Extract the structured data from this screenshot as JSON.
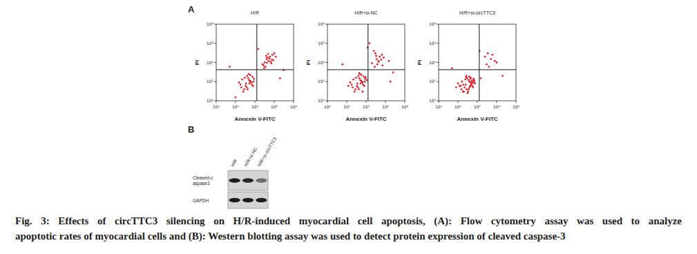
{
  "panel_labels": [
    "A",
    "B"
  ],
  "chart_data": [
    {
      "type": "scatter",
      "title": "H/R",
      "x_label": "Annexin V-FITC",
      "y_label": "PI",
      "log": true,
      "color": "#e8202a",
      "marker": "dot",
      "xlim": [
        1,
        10000
      ],
      "ylim": [
        1,
        10000
      ],
      "xticks": [
        {
          "value": 1,
          "label": "10⁰"
        },
        {
          "value": 10,
          "label": "10¹"
        },
        {
          "value": 100,
          "label": "10²"
        },
        {
          "value": 1000,
          "label": "10³"
        },
        {
          "value": 10000,
          "label": "10⁴"
        }
      ],
      "yticks": [
        {
          "value": 1,
          "label": "10⁰"
        },
        {
          "value": 10,
          "label": "10¹"
        },
        {
          "value": 100,
          "label": "10²"
        },
        {
          "value": 1000,
          "label": "10³"
        },
        {
          "value": 10000,
          "label": "10⁴"
        }
      ],
      "quadrant": {
        "x": 126,
        "y": 42
      },
      "x": [
        20,
        35,
        50,
        28,
        60,
        45,
        80,
        15,
        40,
        70,
        25,
        55,
        90,
        33,
        48,
        65,
        22,
        38,
        75,
        52,
        30,
        42,
        85,
        18,
        58,
        250,
        400,
        600,
        320,
        800,
        500,
        350,
        1000,
        450,
        700,
        280,
        550,
        380,
        900,
        650,
        300,
        480,
        750,
        420,
        1200,
        5,
        3000,
        150,
        2000,
        10
      ],
      "values": [
        5,
        8,
        12,
        4,
        10,
        15,
        6,
        9,
        20,
        7,
        3,
        11,
        14,
        6,
        25,
        9,
        13,
        5,
        18,
        8,
        16,
        4,
        10,
        7,
        22,
        80,
        150,
        200,
        100,
        250,
        120,
        60,
        300,
        180,
        90,
        70,
        160,
        220,
        130,
        110,
        50,
        280,
        140,
        95,
        200,
        60,
        40,
        500,
        15,
        1.5
      ]
    },
    {
      "type": "scatter",
      "title": "H/R+si-NC",
      "x_label": "Annexin V-FITC",
      "y_label": "PI",
      "log": true,
      "color": "#e8202a",
      "marker": "dot",
      "xlim": [
        1,
        10000
      ],
      "ylim": [
        1,
        10000
      ],
      "xticks": [
        {
          "value": 1,
          "label": "10⁰"
        },
        {
          "value": 10,
          "label": "10¹"
        },
        {
          "value": 100,
          "label": "10²"
        },
        {
          "value": 1000,
          "label": "10³"
        },
        {
          "value": 10000,
          "label": "10⁴"
        }
      ],
      "yticks": [
        {
          "value": 1,
          "label": "10⁰"
        },
        {
          "value": 10,
          "label": "10¹"
        },
        {
          "value": 100,
          "label": "10²"
        },
        {
          "value": 1000,
          "label": "10³"
        },
        {
          "value": 10000,
          "label": "10⁴"
        }
      ],
      "quadrant": {
        "x": 126,
        "y": 42
      },
      "x": [
        20,
        35,
        50,
        28,
        60,
        45,
        80,
        15,
        40,
        70,
        25,
        55,
        90,
        33,
        48,
        65,
        22,
        38,
        75,
        52,
        30,
        42,
        85,
        18,
        58,
        110,
        12,
        66,
        44,
        95,
        200,
        350,
        500,
        280,
        650,
        420,
        300,
        800,
        380,
        600,
        250,
        450,
        700,
        330,
        1500,
        6,
        2500,
        120,
        1800,
        150
      ],
      "values": [
        5,
        8,
        12,
        4,
        10,
        15,
        6,
        9,
        20,
        7,
        3,
        11,
        14,
        6,
        25,
        9,
        13,
        5,
        18,
        8,
        16,
        4,
        10,
        7,
        22,
        12,
        6,
        3,
        28,
        17,
        90,
        150,
        200,
        60,
        250,
        120,
        300,
        180,
        80,
        140,
        400,
        110,
        70,
        220,
        120,
        80,
        30,
        600,
        10,
        1000
      ]
    },
    {
      "type": "scatter",
      "title": "H/R+si-circTTC3",
      "x_label": "Annexin V-FITC",
      "y_label": "PI",
      "log": true,
      "color": "#e8202a",
      "marker": "dot",
      "xlim": [
        1,
        10000
      ],
      "ylim": [
        1,
        10000
      ],
      "xticks": [
        {
          "value": 1,
          "label": "10⁰"
        },
        {
          "value": 10,
          "label": "10¹"
        },
        {
          "value": 100,
          "label": "10²"
        },
        {
          "value": 1000,
          "label": "10³"
        },
        {
          "value": 10000,
          "label": "10⁴"
        }
      ],
      "yticks": [
        {
          "value": 1,
          "label": "10⁰"
        },
        {
          "value": 10,
          "label": "10¹"
        },
        {
          "value": 100,
          "label": "10²"
        },
        {
          "value": 1000,
          "label": "10³"
        },
        {
          "value": 10000,
          "label": "10⁴"
        }
      ],
      "quadrant": {
        "x": 126,
        "y": 42
      },
      "x": [
        15,
        25,
        40,
        20,
        50,
        35,
        60,
        10,
        30,
        55,
        18,
        45,
        70,
        22,
        38,
        48,
        16,
        28,
        65,
        42,
        24,
        33,
        75,
        12,
        46,
        8,
        58,
        27,
        36,
        52,
        19,
        62,
        31,
        44,
        14,
        68,
        26,
        39,
        300,
        500,
        250,
        800,
        400,
        600,
        350,
        1000,
        150,
        2000,
        5,
        130
      ],
      "values": [
        4,
        7,
        10,
        3,
        8,
        12,
        5,
        8,
        15,
        6,
        3,
        9,
        11,
        5,
        18,
        7,
        10,
        4,
        14,
        6,
        13,
        3,
        8,
        6,
        16,
        5,
        9,
        20,
        4,
        11,
        7,
        12,
        2.5,
        14,
        6,
        9,
        17,
        5,
        80,
        150,
        200,
        120,
        60,
        250,
        300,
        100,
        15,
        20,
        50,
        400
      ]
    }
  ],
  "blot": {
    "lanes": [
      "H/R",
      "H/R+si-NC",
      "H/R+si-circTTC3"
    ],
    "rows": [
      {
        "label": [
          "Cleaved-c",
          "aspase3"
        ],
        "intensity": [
          1.0,
          0.95,
          0.55
        ]
      },
      {
        "label": [
          "GAPDH"
        ],
        "intensity": [
          1.0,
          1.0,
          1.0
        ]
      }
    ]
  },
  "caption": [
    "Fig. 3: Effects of circTTC3 silencing on H/R-induced myocardial cell apoptosis, (A): Flow cytometry assay was used to analyze",
    "apoptotic rates of myocardial cells and (B): Western blotting assay was used to detect protein expression of cleaved caspase-3"
  ]
}
